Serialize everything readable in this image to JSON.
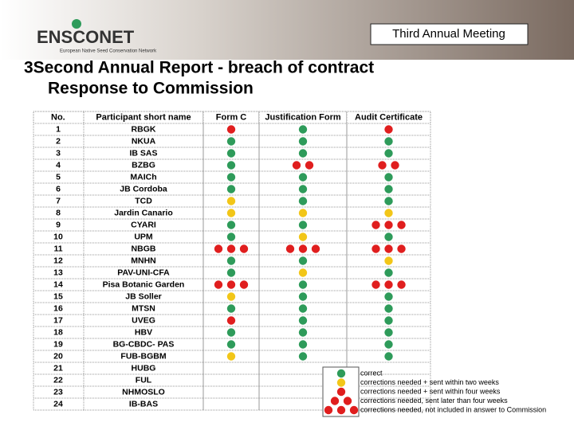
{
  "header": {
    "title": "Third Annual Meeting",
    "logo": "ENSCONET",
    "logo_subtitle": "European Native Seed Conservation Network"
  },
  "slide_title": [
    "3Second Annual Report - breach of contract",
    "Response to Commission"
  ],
  "legend": [
    {
      "label": "correct",
      "color": "#2e9b5a",
      "count": 1
    },
    {
      "label": "corrections needed + sent within two weeks",
      "color": "#f2c618",
      "count": 1
    },
    {
      "label": "corrections needed + sent within four weeks",
      "color": "#e01e1e",
      "count": 1
    },
    {
      "label": "corrections needed, sent later than four weeks",
      "color": "#e01e1e",
      "count": 2
    },
    {
      "label": "corrections needed, not included in answer to Commission",
      "color": "#e01e1e",
      "count": 3
    }
  ],
  "table": {
    "columns": [
      "No.",
      "Participant short name",
      "Form C",
      "Justification Form",
      "Audit Certificate"
    ],
    "rows": [
      [
        "1",
        "RBGK",
        2,
        0,
        2
      ],
      [
        "2",
        "NKUA",
        0,
        0,
        0
      ],
      [
        "3",
        "IB SAS",
        0,
        0,
        0
      ],
      [
        "4",
        "BZBG",
        0,
        3,
        3
      ],
      [
        "5",
        "MAICh",
        0,
        0,
        0
      ],
      [
        "6",
        "JB Cordoba",
        0,
        0,
        0
      ],
      [
        "7",
        "TCD",
        1,
        0,
        0
      ],
      [
        "8",
        "Jardin Canario",
        1,
        1,
        1
      ],
      [
        "9",
        "CYARI",
        0,
        0,
        4
      ],
      [
        "10",
        "UPM",
        0,
        1,
        0
      ],
      [
        "11",
        "NBGB",
        4,
        4,
        4
      ],
      [
        "12",
        "MNHN",
        0,
        0,
        1
      ],
      [
        "13",
        "PAV-UNI-CFA",
        0,
        1,
        0
      ],
      [
        "14",
        "Pisa Botanic Garden",
        4,
        0,
        4
      ],
      [
        "15",
        "JB Soller",
        1,
        0,
        0
      ],
      [
        "16",
        "MTSN",
        0,
        0,
        0
      ],
      [
        "17",
        "UVEG",
        2,
        0,
        0
      ],
      [
        "18",
        "HBV",
        0,
        0,
        0
      ],
      [
        "19",
        "BG-CBDC- PAS",
        0,
        0,
        0
      ],
      [
        "20",
        "FUB-BGBM",
        1,
        0,
        0
      ],
      [
        "21",
        "HUBG",
        null,
        null,
        null
      ],
      [
        "22",
        "FUL",
        null,
        null,
        null
      ],
      [
        "23",
        "NHMOSLO",
        null,
        null,
        null
      ],
      [
        "24",
        "IB-BAS",
        null,
        null,
        null
      ]
    ]
  }
}
